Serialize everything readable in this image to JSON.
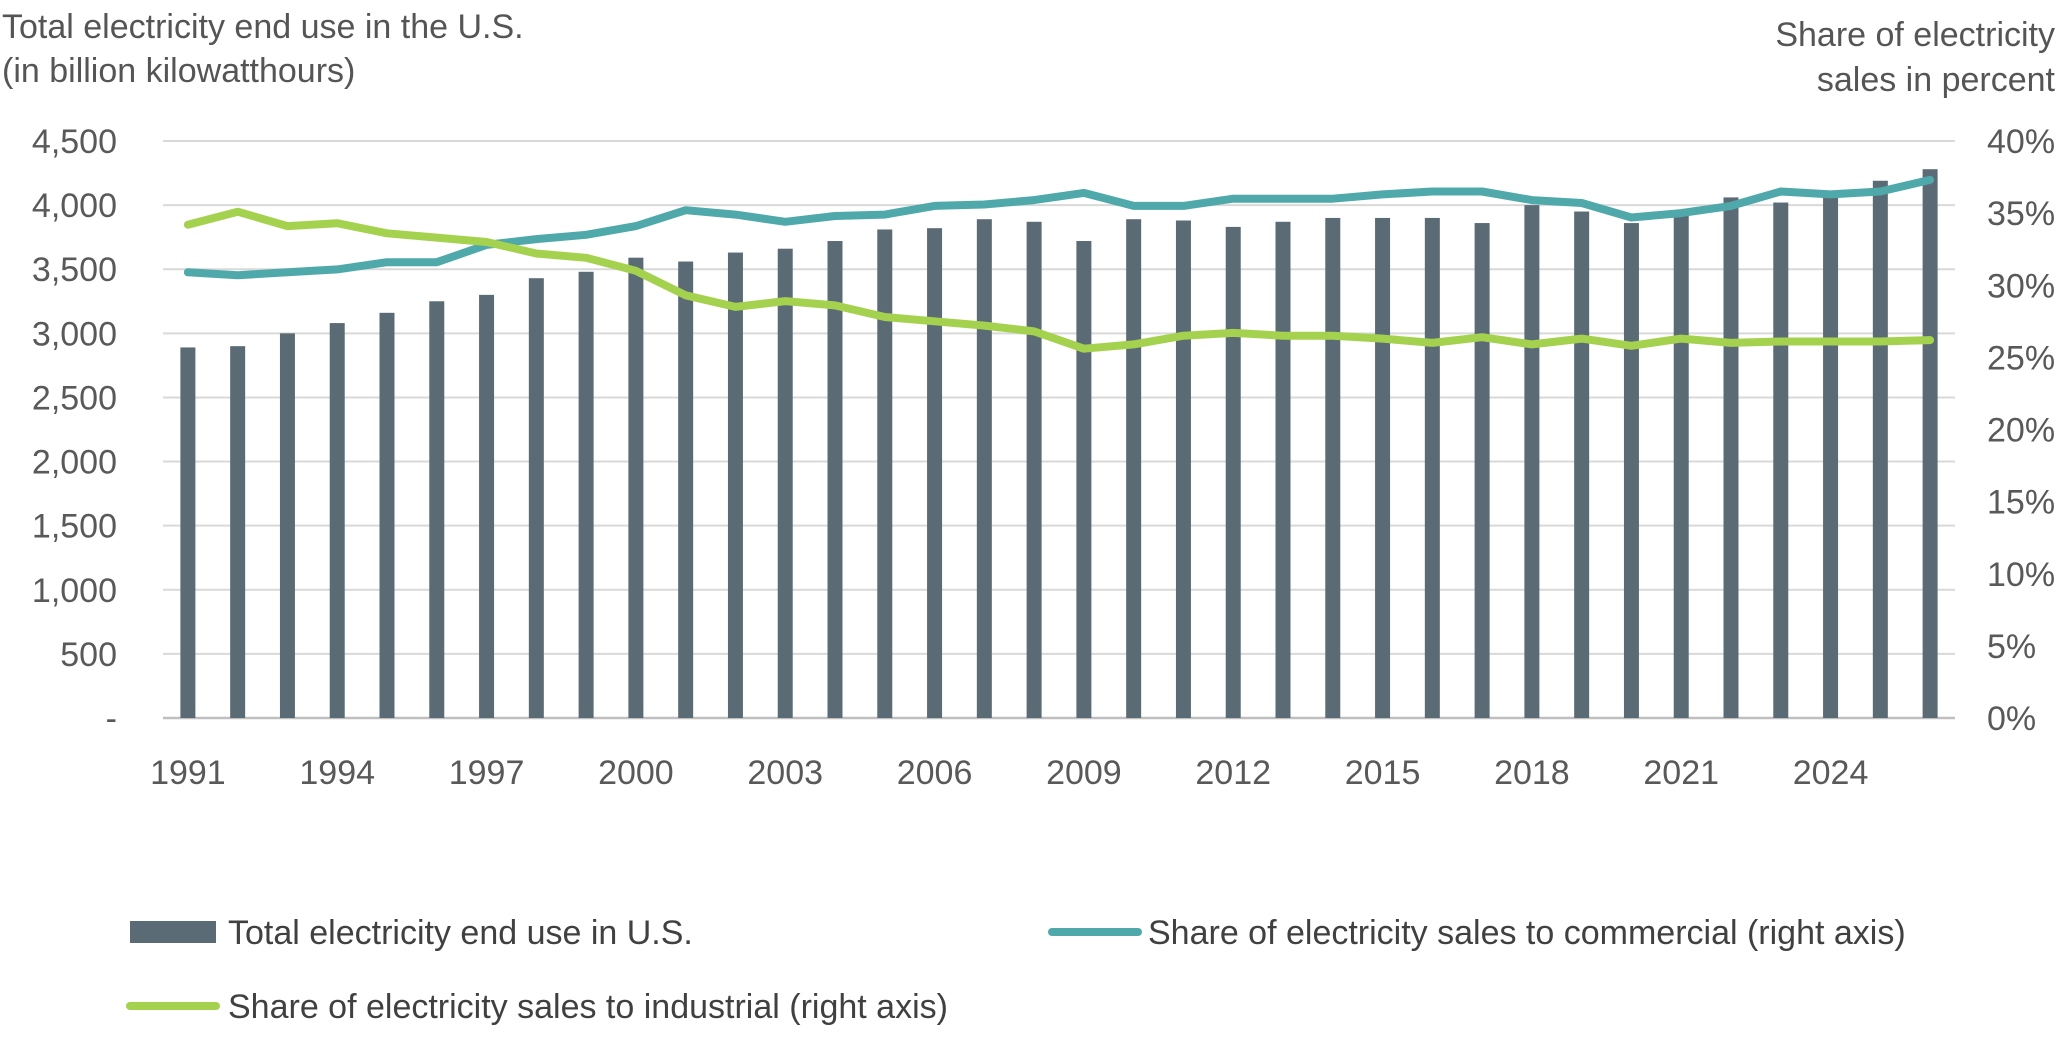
{
  "chart_data": {
    "type": "bar+line",
    "left_axis_title": [
      "Total electricity end use in the U.S.",
      "(in billion kilowatthours)"
    ],
    "right_axis_title": [
      "Share of electricity",
      "sales in percent"
    ],
    "x": [
      1991,
      1992,
      1993,
      1994,
      1995,
      1996,
      1997,
      1998,
      1999,
      2000,
      2001,
      2002,
      2003,
      2004,
      2005,
      2006,
      2007,
      2008,
      2009,
      2010,
      2011,
      2012,
      2013,
      2014,
      2015,
      2016,
      2017,
      2018,
      2019,
      2020,
      2021,
      2022,
      2023,
      2024,
      2025,
      2026
    ],
    "x_tick_labels": [
      "1991",
      "1994",
      "1997",
      "2000",
      "2003",
      "2006",
      "2009",
      "2012",
      "2015",
      "2018",
      "2021",
      "2024"
    ],
    "y_left_ticks": [
      "-",
      "500",
      "1,000",
      "1,500",
      "2,000",
      "2,500",
      "3,000",
      "3,500",
      "4,000",
      "4,500"
    ],
    "y_left_range": [
      0,
      4500
    ],
    "y_right_ticks": [
      "0%",
      "5%",
      "10%",
      "15%",
      "20%",
      "25%",
      "30%",
      "35%",
      "40%"
    ],
    "y_right_range": [
      0,
      40
    ],
    "grid": "horizontal",
    "legend_position": "bottom",
    "series": [
      {
        "name": "Total electricity end use in U.S.",
        "kind": "bar",
        "axis": "left",
        "color": "#5b6b76",
        "values": [
          2890,
          2900,
          3000,
          3080,
          3160,
          3250,
          3300,
          3430,
          3480,
          3590,
          3560,
          3630,
          3660,
          3720,
          3810,
          3820,
          3890,
          3870,
          3720,
          3890,
          3880,
          3830,
          3870,
          3900,
          3900,
          3900,
          3860,
          4000,
          3950,
          3860,
          3930,
          4060,
          4020,
          4080,
          4190,
          4280
        ]
      },
      {
        "name": "Share of electricity sales to commercial (right axis)",
        "kind": "line",
        "axis": "right",
        "color": "#4fa8aa",
        "values": [
          30.9,
          30.7,
          30.9,
          31.1,
          31.6,
          31.6,
          32.8,
          33.2,
          33.5,
          34.1,
          35.2,
          34.9,
          34.4,
          34.8,
          34.9,
          35.5,
          35.6,
          35.9,
          36.4,
          35.5,
          35.5,
          36.0,
          36.0,
          36.0,
          36.3,
          36.5,
          36.5,
          35.9,
          35.7,
          34.7,
          35.0,
          35.5,
          36.5,
          36.3,
          36.5,
          37.3
        ]
      },
      {
        "name": "Share of electricity sales to industrial (right axis)",
        "kind": "line",
        "axis": "right",
        "color": "#a5d24e",
        "values": [
          34.2,
          35.1,
          34.1,
          34.3,
          33.6,
          33.3,
          33.0,
          32.2,
          31.9,
          31.0,
          29.3,
          28.5,
          28.9,
          28.6,
          27.8,
          27.5,
          27.2,
          26.8,
          25.6,
          25.9,
          26.5,
          26.7,
          26.5,
          26.5,
          26.3,
          26.0,
          26.4,
          25.9,
          26.3,
          25.8,
          26.3,
          26.0,
          26.1,
          26.1,
          26.1,
          26.2
        ]
      }
    ]
  }
}
